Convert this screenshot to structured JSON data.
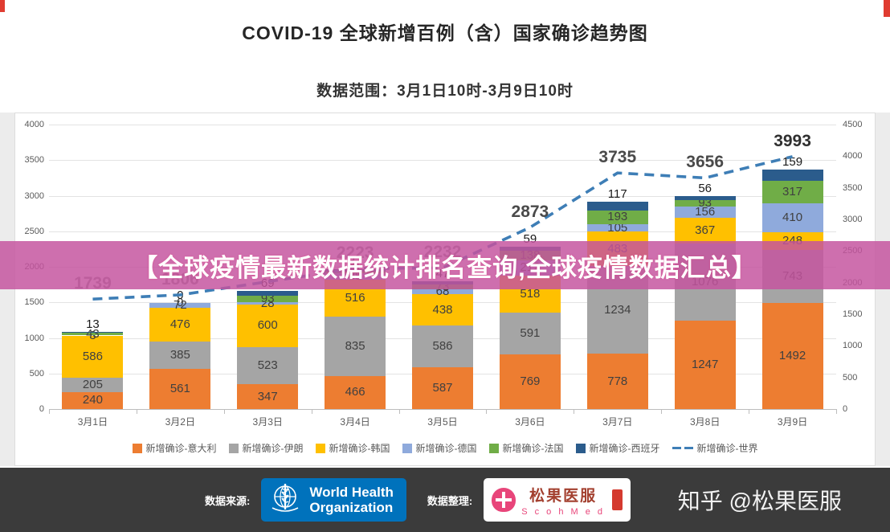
{
  "header": {
    "title": "COVID-19 全球新增百例（含）国家确诊趋势图",
    "subtitle": "数据范围：3月1日10时-3月9日10时"
  },
  "banner": {
    "text": "【全球疫情最新数据统计排名查询,全球疫情数据汇总】",
    "bg_color": "#c5549f"
  },
  "chart_data": {
    "type": "bar",
    "subtype": "stacked-bars-with-dashed-line-overlay",
    "categories": [
      "3月1日",
      "3月2日",
      "3月3日",
      "3月4日",
      "3月5日",
      "3月6日",
      "3月7日",
      "3月8日",
      "3月9日"
    ],
    "series": [
      {
        "name": "新增确诊-意大利",
        "color": "#ED7D31",
        "values": [
          240,
          561,
          347,
          466,
          587,
          769,
          778,
          1247,
          1492
        ]
      },
      {
        "name": "新增确诊-伊朗",
        "color": "#A5A5A5",
        "values": [
          205,
          385,
          523,
          835,
          586,
          591,
          1234,
          1076,
          743
        ]
      },
      {
        "name": "新增确诊-韩国",
        "color": "#FFC000",
        "values": [
          586,
          476,
          600,
          516,
          438,
          518,
          483,
          367,
          248
        ]
      },
      {
        "name": "新增确诊-德国",
        "color": "#8FAADC",
        "values": [
          3,
          72,
          28,
          89,
          68,
          212,
          105,
          156,
          410
        ]
      },
      {
        "name": "新增确诊-法国",
        "color": "#70AD47",
        "values": [
          43,
          0,
          93,
          21,
          73,
          138,
          193,
          93,
          317
        ]
      },
      {
        "name": "新增确诊-西班牙",
        "color": "#2B5C8C",
        "values": [
          13,
          0,
          69,
          37,
          47,
          59,
          117,
          56,
          159
        ]
      }
    ],
    "line_series": {
      "name": "新增确诊-世界",
      "color": "#3E7EB6",
      "values": [
        1739,
        1806,
        2015,
        2223,
        2232,
        2873,
        3735,
        3656,
        3993
      ],
      "labels": [
        "1739",
        "1806",
        "",
        "2223",
        "2232",
        "2873",
        "3735",
        "3656",
        "3993"
      ],
      "label_colors": [
        "#8e8e8e",
        "#8e8e8e",
        "",
        "#8e8e8e",
        "#8e8e8e",
        "#4a4a4a",
        "#4a4a4a",
        "#4a4a4a",
        "#2f2f2f"
      ]
    },
    "left_axis": {
      "min": 0,
      "max": 4000,
      "step": 500
    },
    "right_axis": {
      "min": 0,
      "max": 4500,
      "step": 500
    },
    "grid": true,
    "legend_position": "bottom"
  },
  "footer": {
    "source_label": "数据来源:",
    "curation_label": "数据整理:",
    "who_logo": {
      "line1": "World Health",
      "line2": "Organization"
    },
    "scoh_logo": {
      "name": "松果医服",
      "sub": "S c o h M e d"
    },
    "credit": "知乎 @松果医服"
  }
}
